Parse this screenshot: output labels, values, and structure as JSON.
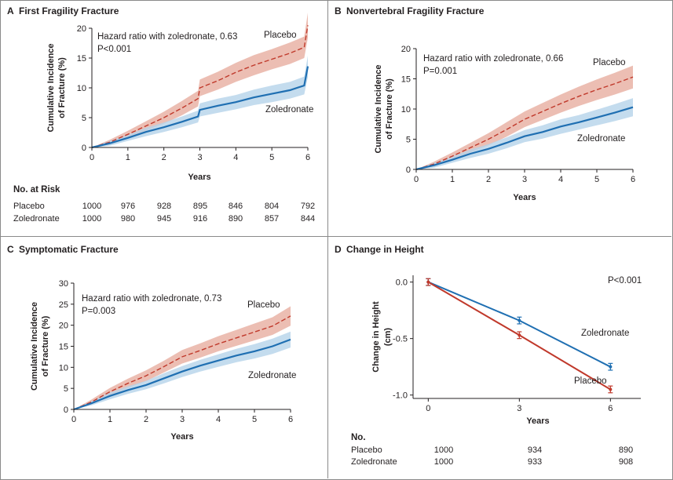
{
  "colors": {
    "placebo_line": "#c0392b",
    "placebo_band": "#e6a899",
    "zol_line": "#1f6fb2",
    "zol_band": "#b5d3ea",
    "frame": "#8a8a8a"
  },
  "panels": {
    "A": {
      "letter": "A",
      "title": "First Fragility Fracture",
      "hr_text": "Hazard ratio with zoledronate, 0.63",
      "p_text": "P<0.001",
      "series_labels": {
        "placebo": "Placebo",
        "zol": "Zoledronate"
      }
    },
    "B": {
      "letter": "B",
      "title": "Nonvertebral Fragility Fracture",
      "hr_text": "Hazard ratio with zoledronate, 0.66",
      "p_text": "P=0.001",
      "series_labels": {
        "placebo": "Placebo",
        "zol": "Zoledronate"
      }
    },
    "C": {
      "letter": "C",
      "title": "Symptomatic Fracture",
      "hr_text": "Hazard ratio with zoledronate, 0.73",
      "p_text": "P=0.003",
      "series_labels": {
        "placebo": "Placebo",
        "zol": "Zoledronate"
      }
    },
    "D": {
      "letter": "D",
      "title": "Change in Height",
      "p_text": "P<0.001",
      "series_labels": {
        "placebo": "Placebo",
        "zol": "Zoledronate"
      }
    }
  },
  "risk_table_A": {
    "heading": "No. at Risk",
    "rows": [
      {
        "label": "Placebo",
        "values": [
          "1000",
          "976",
          "928",
          "895",
          "846",
          "804",
          "792"
        ]
      },
      {
        "label": "Zoledronate",
        "values": [
          "1000",
          "980",
          "945",
          "916",
          "890",
          "857",
          "844"
        ]
      }
    ]
  },
  "risk_table_D": {
    "heading": "No.",
    "rows": [
      {
        "label": "Placebo",
        "values": [
          "1000",
          "934",
          "890"
        ]
      },
      {
        "label": "Zoledronate",
        "values": [
          "1000",
          "933",
          "908"
        ]
      }
    ]
  },
  "chart_data": [
    {
      "id": "A",
      "type": "line",
      "title": "First Fragility Fracture",
      "xlabel": "Years",
      "ylabel": "Cumulative Incidence of Fracture (%)",
      "xlim": [
        0,
        6
      ],
      "ylim": [
        0,
        20
      ],
      "xticks": [
        0,
        1,
        2,
        3,
        4,
        5,
        6
      ],
      "yticks": [
        0,
        5,
        10,
        15,
        20
      ],
      "series": [
        {
          "name": "Placebo",
          "style": "dashed",
          "x": [
            0,
            0.5,
            1,
            1.5,
            2,
            2.5,
            2.95,
            3.0,
            3.5,
            4,
            4.5,
            5,
            5.5,
            5.9,
            6.0
          ],
          "y": [
            0,
            0.9,
            2.2,
            3.6,
            5.0,
            6.6,
            8.2,
            10.0,
            11.2,
            12.6,
            13.8,
            14.8,
            15.8,
            16.8,
            20.5
          ],
          "ci_low": [
            0,
            0.5,
            1.6,
            2.8,
            4.0,
            5.4,
            6.9,
            8.6,
            9.7,
            11.0,
            12.1,
            13.1,
            14.0,
            15.0,
            18.4
          ],
          "ci_high": [
            0,
            1.3,
            2.8,
            4.4,
            6.0,
            7.8,
            9.5,
            11.4,
            12.7,
            14.2,
            15.5,
            16.5,
            17.6,
            18.6,
            22.6
          ]
        },
        {
          "name": "Zoledronate",
          "style": "solid",
          "x": [
            0,
            0.5,
            1,
            1.5,
            2,
            2.5,
            2.95,
            3.0,
            3.5,
            4,
            4.5,
            5,
            5.5,
            5.9,
            6.0
          ],
          "y": [
            0,
            0.7,
            1.6,
            2.6,
            3.4,
            4.3,
            5.2,
            6.3,
            7.0,
            7.6,
            8.4,
            9.0,
            9.6,
            10.4,
            13.6
          ],
          "ci_low": [
            0,
            0.3,
            1.1,
            1.9,
            2.6,
            3.4,
            4.2,
            5.2,
            5.8,
            6.4,
            7.1,
            7.6,
            8.2,
            8.9,
            11.8
          ],
          "ci_high": [
            0,
            1.1,
            2.1,
            3.3,
            4.2,
            5.2,
            6.2,
            7.4,
            8.2,
            8.8,
            9.7,
            10.4,
            11.0,
            11.9,
            15.4
          ]
        }
      ]
    },
    {
      "id": "B",
      "type": "line",
      "title": "Nonvertebral Fragility Fracture",
      "xlabel": "Years",
      "ylabel": "Cumulative Incidence of Fracture (%)",
      "xlim": [
        0,
        6
      ],
      "ylim": [
        0,
        20
      ],
      "xticks": [
        0,
        1,
        2,
        3,
        4,
        5,
        6
      ],
      "yticks": [
        0,
        5,
        10,
        15,
        20
      ],
      "series": [
        {
          "name": "Placebo",
          "style": "dashed",
          "x": [
            0,
            0.5,
            1,
            1.5,
            2,
            2.5,
            3,
            3.5,
            4,
            4.5,
            5,
            5.5,
            6
          ],
          "y": [
            0,
            0.9,
            2.2,
            3.6,
            5.0,
            6.6,
            8.3,
            9.6,
            10.9,
            12.1,
            13.2,
            14.2,
            15.3
          ],
          "ci_low": [
            0,
            0.5,
            1.6,
            2.8,
            4.0,
            5.4,
            7.0,
            8.2,
            9.4,
            10.5,
            11.5,
            12.4,
            13.4
          ],
          "ci_high": [
            0,
            1.3,
            2.8,
            4.4,
            6.0,
            7.8,
            9.6,
            11.0,
            12.4,
            13.7,
            14.9,
            16.0,
            17.2
          ]
        },
        {
          "name": "Zoledronate",
          "style": "solid",
          "x": [
            0,
            0.5,
            1,
            1.5,
            2,
            2.5,
            3,
            3.5,
            4,
            4.5,
            5,
            5.5,
            6
          ],
          "y": [
            0,
            0.7,
            1.6,
            2.6,
            3.4,
            4.4,
            5.5,
            6.2,
            7.1,
            7.8,
            8.6,
            9.4,
            10.3
          ],
          "ci_low": [
            0,
            0.3,
            1.1,
            1.9,
            2.6,
            3.5,
            4.5,
            5.1,
            5.9,
            6.6,
            7.3,
            8.0,
            8.8
          ],
          "ci_high": [
            0,
            1.1,
            2.1,
            3.3,
            4.2,
            5.3,
            6.5,
            7.3,
            8.3,
            9.0,
            9.9,
            10.8,
            11.8
          ]
        }
      ]
    },
    {
      "id": "C",
      "type": "line",
      "title": "Symptomatic Fracture",
      "xlabel": "Years",
      "ylabel": "Cumulative Incidence of Fracture (%)",
      "xlim": [
        0,
        6
      ],
      "ylim": [
        0,
        30
      ],
      "xticks": [
        0,
        1,
        2,
        3,
        4,
        5,
        6
      ],
      "yticks": [
        0,
        5,
        10,
        15,
        20,
        25,
        30
      ],
      "series": [
        {
          "name": "Placebo",
          "style": "dashed",
          "x": [
            0,
            0.5,
            1,
            1.5,
            2,
            2.5,
            3,
            3.5,
            4,
            4.5,
            5,
            5.5,
            6
          ],
          "y": [
            0,
            1.8,
            4.2,
            6.2,
            8.0,
            10.2,
            12.5,
            14.0,
            15.6,
            17.0,
            18.4,
            19.8,
            22.2
          ],
          "ci_low": [
            0,
            1.2,
            3.3,
            5.1,
            6.7,
            8.8,
            10.9,
            12.3,
            13.8,
            15.1,
            16.4,
            17.7,
            19.9
          ],
          "ci_high": [
            0,
            2.4,
            5.1,
            7.3,
            9.3,
            11.6,
            14.1,
            15.7,
            17.4,
            18.9,
            20.4,
            21.9,
            24.5
          ]
        },
        {
          "name": "Zoledronate",
          "style": "solid",
          "x": [
            0,
            0.5,
            1,
            1.5,
            2,
            2.5,
            3,
            3.5,
            4,
            4.5,
            5,
            5.5,
            6
          ],
          "y": [
            0,
            1.5,
            3.2,
            4.6,
            5.8,
            7.4,
            9.0,
            10.4,
            11.6,
            12.8,
            13.8,
            15.0,
            16.6
          ],
          "ci_low": [
            0,
            1.0,
            2.4,
            3.7,
            4.8,
            6.2,
            7.7,
            9.0,
            10.1,
            11.2,
            12.1,
            13.2,
            14.7
          ],
          "ci_high": [
            0,
            2.0,
            4.0,
            5.5,
            6.8,
            8.6,
            10.3,
            11.8,
            13.1,
            14.4,
            15.5,
            16.8,
            18.5
          ]
        }
      ]
    },
    {
      "id": "D",
      "type": "line",
      "title": "Change in Height",
      "xlabel": "Years",
      "ylabel": "Change in Height (cm)",
      "xlim": [
        -0.5,
        7
      ],
      "ylim": [
        -1.03,
        0.06
      ],
      "xticks": [
        0,
        3,
        6
      ],
      "yticks": [
        0.0,
        -0.5,
        -1.0
      ],
      "ytick_labels": [
        "0.0",
        "-0.5",
        "-1.0"
      ],
      "series": [
        {
          "name": "Zoledronate",
          "x": [
            0,
            3,
            6
          ],
          "y": [
            0,
            -0.34,
            -0.75
          ],
          "err": [
            0.03,
            0.03,
            0.03
          ]
        },
        {
          "name": "Placebo",
          "x": [
            0,
            3,
            6
          ],
          "y": [
            0,
            -0.47,
            -0.95
          ],
          "err": [
            0.03,
            0.03,
            0.03
          ]
        }
      ]
    }
  ]
}
